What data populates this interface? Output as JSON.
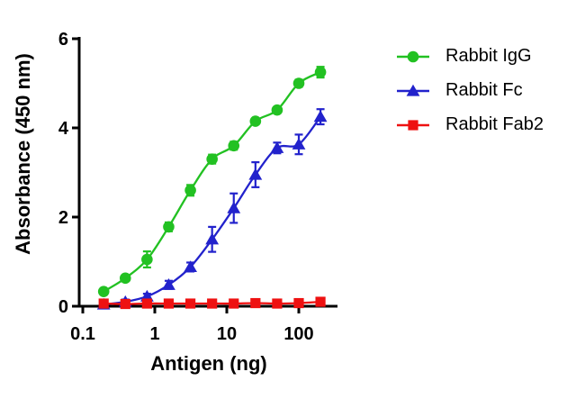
{
  "figure": {
    "background": "#ffffff",
    "text_color": "#000000",
    "axis_color": "#000000"
  },
  "chart_data": {
    "type": "line",
    "title": "",
    "xlabel": "Antigen (ng)",
    "ylabel": "Absorbance (450 nm)",
    "x_scale": "log10",
    "xlim": [
      0.1,
      320
    ],
    "ylim": [
      0,
      6
    ],
    "x_ticks": [
      0.1,
      1,
      10,
      100
    ],
    "x_tick_labels": [
      "0.1",
      "1",
      "10",
      "100"
    ],
    "y_ticks": [
      0,
      2,
      4,
      6
    ],
    "y_tick_labels": [
      "0",
      "2",
      "4",
      "6"
    ],
    "grid": "off",
    "legend_position": "right",
    "x": [
      0.195,
      0.39,
      0.78,
      1.56,
      3.125,
      6.25,
      12.5,
      25,
      50,
      100,
      200
    ],
    "series": [
      {
        "name": "Rabbit IgG",
        "color": "#22c122",
        "marker": "circle",
        "values": [
          0.33,
          0.63,
          1.05,
          1.78,
          2.6,
          3.3,
          3.6,
          4.15,
          4.4,
          5.0,
          5.25
        ],
        "errors": [
          0.05,
          0.06,
          0.18,
          0.1,
          0.12,
          0.1,
          0.09,
          0.06,
          0.06,
          0.08,
          0.12
        ]
      },
      {
        "name": "Rabbit Fc",
        "color": "#2222cc",
        "marker": "triangle",
        "values": [
          0.04,
          0.1,
          0.22,
          0.48,
          0.88,
          1.5,
          2.2,
          2.95,
          3.55,
          3.63,
          4.25
        ],
        "errors": [
          0.04,
          0.05,
          0.06,
          0.09,
          0.1,
          0.28,
          0.33,
          0.28,
          0.12,
          0.22,
          0.17
        ]
      },
      {
        "name": "Rabbit Fab2",
        "color": "#ee1111",
        "marker": "square",
        "values": [
          0.06,
          0.05,
          0.06,
          0.06,
          0.06,
          0.06,
          0.06,
          0.07,
          0.06,
          0.07,
          0.1
        ],
        "errors": [
          0.02,
          0.02,
          0.02,
          0.02,
          0.02,
          0.02,
          0.02,
          0.02,
          0.02,
          0.02,
          0.06
        ]
      }
    ]
  }
}
